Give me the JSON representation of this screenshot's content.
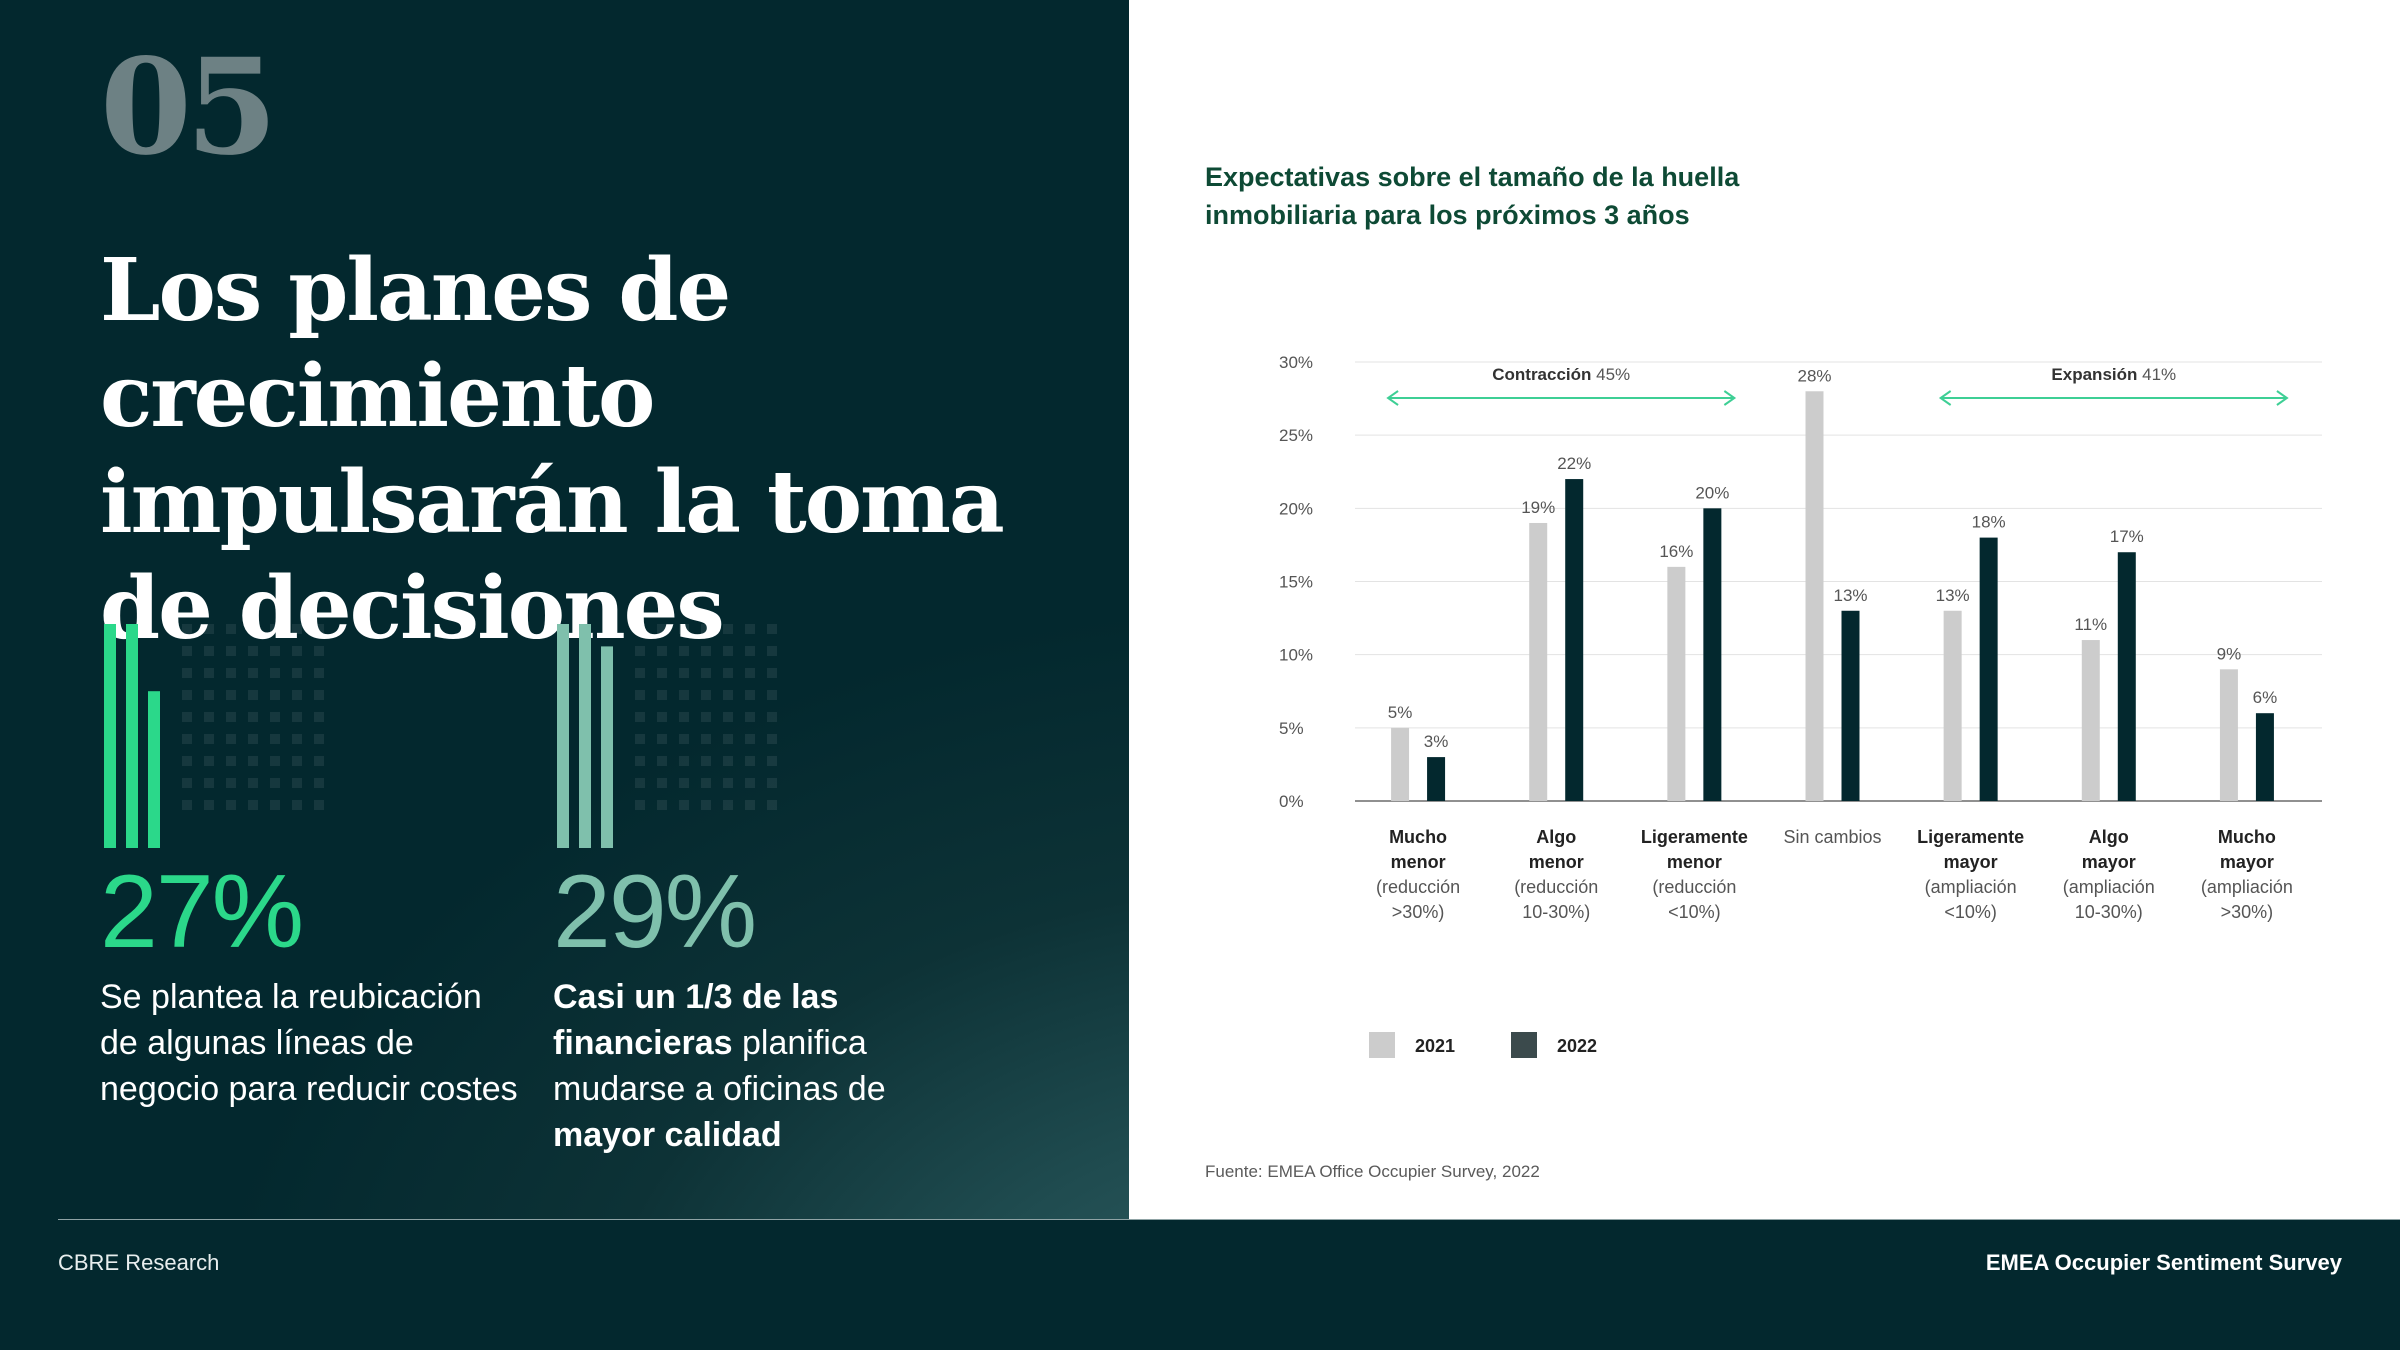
{
  "section_number": "05",
  "headline": "Los planes de crecimiento impulsarán la toma de decisiones",
  "stats": [
    {
      "value": "27%",
      "fraction": 0.27,
      "text_parts": [
        {
          "t": "Se plantea la reubicación de algunas líneas de negocio para reducir costes",
          "b": false
        }
      ],
      "color": "#2bd88a"
    },
    {
      "value": "29%",
      "fraction": 0.29,
      "text_parts": [
        {
          "t": "Casi un 1/3 de las financieras",
          "b": true
        },
        {
          "t": " planifica mudarse a oficinas de ",
          "b": false
        },
        {
          "t": "mayor calidad",
          "b": true
        }
      ],
      "color": "#7fc0ac"
    }
  ],
  "chart_data": {
    "type": "bar",
    "title": "Expectativas sobre el tamaño de la huella inmobiliaria para los próximos 3 años",
    "categories": [
      {
        "bold": "Mucho menor",
        "sub": "(reducción >30%)"
      },
      {
        "bold": "Algo menor",
        "sub": "(reducción 10-30%)"
      },
      {
        "bold": "Ligeramente menor",
        "sub": "(reducción <10%)"
      },
      {
        "bold": "",
        "sub": "Sin cambios"
      },
      {
        "bold": "Ligeramente mayor",
        "sub": "(ampliación <10%)"
      },
      {
        "bold": "Algo mayor",
        "sub": "(ampliación 10-30%)"
      },
      {
        "bold": "Mucho mayor",
        "sub": "(ampliación >30%)"
      }
    ],
    "series": [
      {
        "name": "2021",
        "values": [
          5,
          19,
          16,
          28,
          13,
          11,
          9
        ],
        "color": "#cccccc"
      },
      {
        "name": "2022",
        "values": [
          3,
          22,
          20,
          13,
          18,
          17,
          6
        ],
        "color": "#03282e"
      }
    ],
    "ylim": [
      0,
      30
    ],
    "yticks": [
      "0%",
      "5%",
      "10%",
      "15%",
      "20%",
      "25%",
      "30%"
    ],
    "grid": true,
    "legend_position": "bottom-left",
    "annotations": [
      {
        "bold": "Contracción",
        "rest": " 45%",
        "from_category": 0,
        "to_category": 2
      },
      {
        "bold": "Expansión",
        "rest": " 41%",
        "from_category": 4,
        "to_category": 6
      }
    ],
    "arrow_color": "#3ecf95"
  },
  "source": "Fuente: EMEA Office Occupier Survey, 2022",
  "footer": {
    "left": "CBRE Research",
    "right": "EMEA Occupier Sentiment Survey"
  }
}
